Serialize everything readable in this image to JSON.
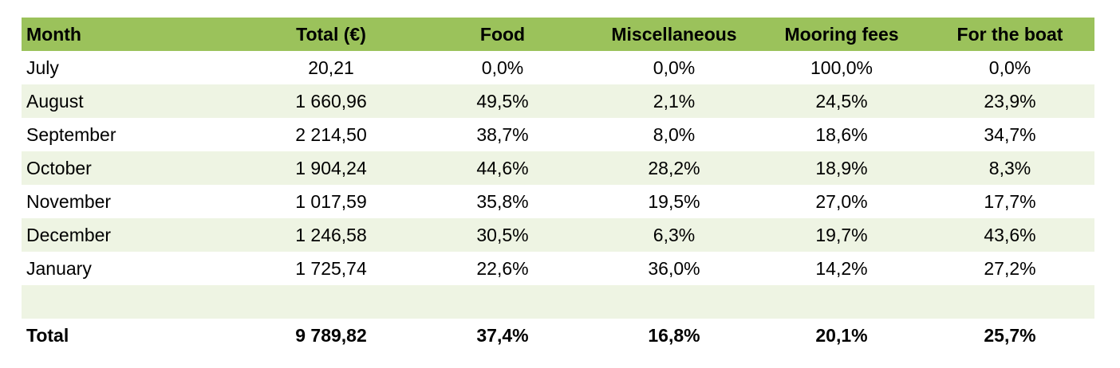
{
  "table": {
    "header": [
      "Month",
      "Total (€)",
      "Food",
      "Miscellaneous",
      "Mooring fees",
      "For the boat"
    ],
    "rows": [
      [
        "July",
        "20,21",
        "0,0%",
        "0,0%",
        "100,0%",
        "0,0%"
      ],
      [
        "August",
        "1 660,96",
        "49,5%",
        "2,1%",
        "24,5%",
        "23,9%"
      ],
      [
        "September",
        "2 214,50",
        "38,7%",
        "8,0%",
        "18,6%",
        "34,7%"
      ],
      [
        "October",
        "1 904,24",
        "44,6%",
        "28,2%",
        "18,9%",
        "8,3%"
      ],
      [
        "November",
        "1 017,59",
        "35,8%",
        "19,5%",
        "27,0%",
        "17,7%"
      ],
      [
        "December",
        "1 246,58",
        "30,5%",
        "6,3%",
        "19,7%",
        "43,6%"
      ],
      [
        "January",
        "1 725,74",
        "22,6%",
        "36,0%",
        "14,2%",
        "27,2%"
      ]
    ],
    "total": [
      "Total",
      "9 789,82",
      "37,4%",
      "16,8%",
      "20,1%",
      "25,7%"
    ]
  }
}
